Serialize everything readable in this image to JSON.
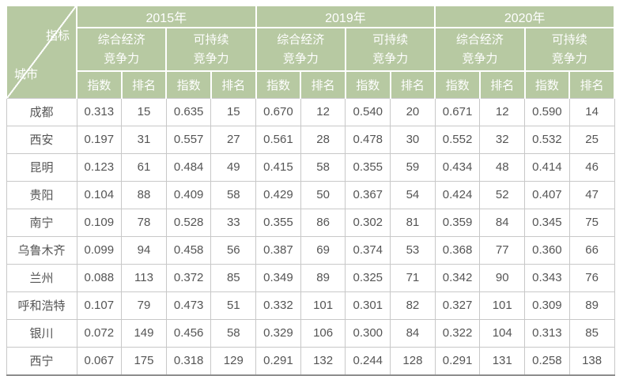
{
  "colors": {
    "header_bg": "#b7c9a2",
    "header_text": "#ffffff",
    "body_text": "#555555",
    "grid_line": "#c8c8c8",
    "bottom_border": "#8e8e8e"
  },
  "table": {
    "corner": {
      "top_right_label": "指标",
      "bottom_left_label": "城市"
    },
    "year_headers": [
      "2015年",
      "2019年",
      "2020年"
    ],
    "group_headers": [
      {
        "line1": "综合经济",
        "line2": "竞争力"
      },
      {
        "line1": "可持续",
        "line2": "竞争力"
      }
    ],
    "sub_headers": [
      "指数",
      "排名"
    ],
    "rows": [
      {
        "city": "成都",
        "values": [
          "0.313",
          "15",
          "0.635",
          "15",
          "0.670",
          "12",
          "0.540",
          "20",
          "0.671",
          "12",
          "0.590",
          "14"
        ]
      },
      {
        "city": "西安",
        "values": [
          "0.197",
          "31",
          "0.557",
          "27",
          "0.561",
          "28",
          "0.478",
          "30",
          "0.552",
          "32",
          "0.532",
          "25"
        ]
      },
      {
        "city": "昆明",
        "values": [
          "0.123",
          "61",
          "0.484",
          "49",
          "0.415",
          "58",
          "0.355",
          "59",
          "0.434",
          "48",
          "0.414",
          "46"
        ]
      },
      {
        "city": "贵阳",
        "values": [
          "0.104",
          "88",
          "0.409",
          "58",
          "0.429",
          "50",
          "0.367",
          "54",
          "0.424",
          "52",
          "0.407",
          "47"
        ]
      },
      {
        "city": "南宁",
        "values": [
          "0.109",
          "78",
          "0.528",
          "33",
          "0.355",
          "86",
          "0.302",
          "81",
          "0.359",
          "84",
          "0.345",
          "75"
        ]
      },
      {
        "city": "乌鲁木齐",
        "values": [
          "0.099",
          "94",
          "0.458",
          "56",
          "0.387",
          "69",
          "0.374",
          "53",
          "0.368",
          "77",
          "0.360",
          "66"
        ]
      },
      {
        "city": "兰州",
        "values": [
          "0.088",
          "113",
          "0.372",
          "85",
          "0.349",
          "89",
          "0.325",
          "71",
          "0.342",
          "90",
          "0.343",
          "76"
        ]
      },
      {
        "city": "呼和浩特",
        "values": [
          "0.107",
          "79",
          "0.473",
          "51",
          "0.332",
          "101",
          "0.301",
          "82",
          "0.327",
          "101",
          "0.309",
          "89"
        ]
      },
      {
        "city": "银川",
        "values": [
          "0.072",
          "149",
          "0.456",
          "58",
          "0.329",
          "106",
          "0.300",
          "84",
          "0.322",
          "104",
          "0.313",
          "85"
        ]
      },
      {
        "city": "西宁",
        "values": [
          "0.067",
          "175",
          "0.318",
          "129",
          "0.291",
          "132",
          "0.244",
          "128",
          "0.291",
          "131",
          "0.258",
          "138"
        ]
      }
    ]
  },
  "chart_data": {
    "type": "table",
    "axis_labels": {
      "columns": "指标",
      "rows": "城市"
    },
    "years": [
      "2015年",
      "2019年",
      "2020年"
    ],
    "measures": [
      "综合经济竞争力",
      "可持续竞争力"
    ],
    "metrics": [
      "指数",
      "排名"
    ],
    "columns": [
      "2015年-综合经济竞争力-指数",
      "2015年-综合经济竞争力-排名",
      "2015年-可持续竞争力-指数",
      "2015年-可持续竞争力-排名",
      "2019年-综合经济竞争力-指数",
      "2019年-综合经济竞争力-排名",
      "2019年-可持续竞争力-指数",
      "2019年-可持续竞争力-排名",
      "2020年-综合经济竞争力-指数",
      "2020年-综合经济竞争力-排名",
      "2020年-可持续竞争力-指数",
      "2020年-可持续竞争力-排名"
    ],
    "cities": [
      "成都",
      "西安",
      "昆明",
      "贵阳",
      "南宁",
      "乌鲁木齐",
      "兰州",
      "呼和浩特",
      "银川",
      "西宁"
    ],
    "values": [
      [
        0.313,
        15,
        0.635,
        15,
        0.67,
        12,
        0.54,
        20,
        0.671,
        12,
        0.59,
        14
      ],
      [
        0.197,
        31,
        0.557,
        27,
        0.561,
        28,
        0.478,
        30,
        0.552,
        32,
        0.532,
        25
      ],
      [
        0.123,
        61,
        0.484,
        49,
        0.415,
        58,
        0.355,
        59,
        0.434,
        48,
        0.414,
        46
      ],
      [
        0.104,
        88,
        0.409,
        58,
        0.429,
        50,
        0.367,
        54,
        0.424,
        52,
        0.407,
        47
      ],
      [
        0.109,
        78,
        0.528,
        33,
        0.355,
        86,
        0.302,
        81,
        0.359,
        84,
        0.345,
        75
      ],
      [
        0.099,
        94,
        0.458,
        56,
        0.387,
        69,
        0.374,
        53,
        0.368,
        77,
        0.36,
        66
      ],
      [
        0.088,
        113,
        0.372,
        85,
        0.349,
        89,
        0.325,
        71,
        0.342,
        90,
        0.343,
        76
      ],
      [
        0.107,
        79,
        0.473,
        51,
        0.332,
        101,
        0.301,
        82,
        0.327,
        101,
        0.309,
        89
      ],
      [
        0.072,
        149,
        0.456,
        58,
        0.329,
        106,
        0.3,
        84,
        0.322,
        104,
        0.313,
        85
      ],
      [
        0.067,
        175,
        0.318,
        129,
        0.291,
        132,
        0.244,
        128,
        0.291,
        131,
        0.258,
        138
      ]
    ]
  }
}
